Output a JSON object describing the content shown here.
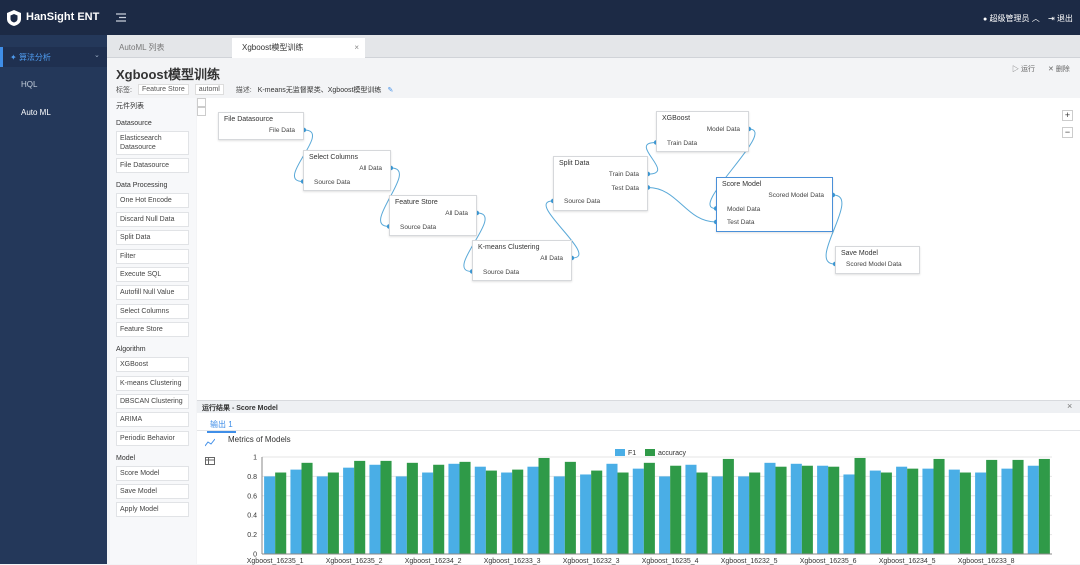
{
  "header": {
    "logo": "HanSight ENT",
    "user": "超级管理员",
    "logout": "退出"
  },
  "sidebar": {
    "section": "算法分析",
    "items": [
      "HQL",
      "Auto ML"
    ]
  },
  "tabs": [
    "AutoML 列表",
    "Xgboost模型训练"
  ],
  "page": {
    "title": "Xgboost模型训练",
    "run": "运行",
    "delete": "删除",
    "tags_label": "标签:",
    "tags": [
      "Feature Store",
      "automl"
    ],
    "desc_label": "描述:",
    "desc": "K-means无监督聚类、Xgboost模型训练"
  },
  "components": {
    "title": "元件列表",
    "groups": [
      {
        "name": "Datasource",
        "items": [
          "Elasticsearch Datasource",
          "File Datasource"
        ]
      },
      {
        "name": "Data Processing",
        "items": [
          "One Hot Encode",
          "Discard Null Data",
          "Split Data",
          "Filter",
          "Execute SQL",
          "Autofill Null Value",
          "Select Columns",
          "Feature Store"
        ]
      },
      {
        "name": "Algorithm",
        "items": [
          "XGBoost",
          "K-means Clustering",
          "DBSCAN Clustering",
          "ARIMA",
          "Periodic Behavior"
        ]
      },
      {
        "name": "Model",
        "items": [
          "Score Model",
          "Save Model",
          "Apply Model"
        ]
      }
    ]
  },
  "nodes": [
    {
      "title": "File Datasource",
      "outputs": [
        "File Data"
      ],
      "inputs": []
    },
    {
      "title": "Select Columns",
      "outputs": [
        "All Data"
      ],
      "inputs": [
        "Source Data"
      ]
    },
    {
      "title": "Feature Store",
      "outputs": [
        "All Data"
      ],
      "inputs": [
        "Source Data"
      ]
    },
    {
      "title": "K-means Clustering",
      "outputs": [
        "All Data"
      ],
      "inputs": [
        "Source Data"
      ]
    },
    {
      "title": "Split Data",
      "outputs": [
        "Train Data",
        "Test Data"
      ],
      "inputs": [
        "Source Data"
      ]
    },
    {
      "title": "XGBoost",
      "outputs": [
        "Model Data"
      ],
      "inputs": [
        "Train Data"
      ]
    },
    {
      "title": "Score Model",
      "outputs": [
        "Scored Model Data"
      ],
      "inputs": [
        "Model Data",
        "Test Data"
      ]
    },
    {
      "title": "Save Model",
      "outputs": [],
      "inputs": [
        "Scored Model Data"
      ]
    }
  ],
  "results": {
    "title": "运行结果 - Score Model",
    "tab": "输出 1"
  },
  "chart_data": {
    "type": "bar",
    "title": "Metrics of Models",
    "categories": [
      "Xgboost_16235_1",
      null,
      null,
      "Xgboost_16235_2",
      null,
      null,
      "Xgboost_16234_2",
      null,
      null,
      "Xgboost_16233_3",
      null,
      null,
      "Xgboost_16232_3",
      null,
      null,
      "Xgboost_16235_4",
      null,
      null,
      "Xgboost_16232_5",
      null,
      null,
      "Xgboost_16235_6",
      null,
      null,
      "Xgboost_16234_5",
      null,
      null,
      "Xgboost_16233_8",
      null,
      null
    ],
    "series": [
      {
        "name": "F1",
        "color": "#4aaee6",
        "values": [
          0.8,
          0.87,
          0.8,
          0.89,
          0.92,
          0.8,
          0.84,
          0.93,
          0.9,
          0.84,
          0.9,
          0.8,
          0.82,
          0.93,
          0.88,
          0.8,
          0.92,
          0.8,
          0.8,
          0.94,
          0.93,
          0.91,
          0.82,
          0.86,
          0.9,
          0.88,
          0.87,
          0.84,
          0.88,
          0.91
        ]
      },
      {
        "name": "accuracy",
        "color": "#2f9a48",
        "values": [
          0.84,
          0.94,
          0.84,
          0.96,
          0.96,
          0.94,
          0.92,
          0.95,
          0.86,
          0.87,
          0.99,
          0.95,
          0.86,
          0.84,
          0.94,
          0.91,
          0.84,
          0.98,
          0.84,
          0.9,
          0.91,
          0.9,
          0.99,
          0.84,
          0.88,
          0.98,
          0.84,
          0.97,
          0.97,
          0.98
        ]
      }
    ],
    "ylim": [
      0,
      1
    ],
    "yticks": [
      0,
      0.2,
      0.4,
      0.6,
      0.8,
      1
    ],
    "grid": true,
    "legend": "top"
  }
}
